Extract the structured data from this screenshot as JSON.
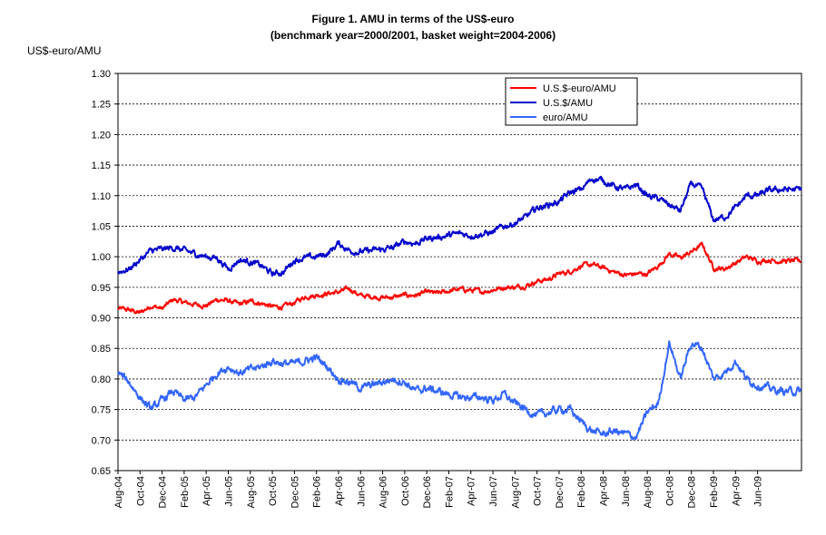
{
  "chart_data": {
    "type": "line",
    "title": "Figure 1. AMU in terms of the US$-euro",
    "subtitle": "(benchmark year=2000/2001, basket weight=2004-2006)",
    "ylabel": "US$-euro/AMU",
    "xlabel": "",
    "ylim": [
      0.65,
      1.3
    ],
    "ystep": 0.05,
    "yticks": [
      "0.65",
      "0.70",
      "0.75",
      "0.80",
      "0.85",
      "0.90",
      "0.95",
      "1.00",
      "1.05",
      "1.10",
      "1.15",
      "1.20",
      "1.25",
      "1.30"
    ],
    "x_range": [
      "2004-08-01",
      "2009-08-31"
    ],
    "categories": [
      "Aug-04",
      "Oct-04",
      "Dec-04",
      "Feb-05",
      "Apr-05",
      "Jun-05",
      "Aug-05",
      "Oct-05",
      "Dec-05",
      "Feb-06",
      "Apr-06",
      "Jun-06",
      "Aug-06",
      "Oct-06",
      "Dec-06",
      "Feb-07",
      "Apr-07",
      "Jun-07",
      "Aug-07",
      "Oct-07",
      "Dec-07",
      "Feb-08",
      "Apr-08",
      "Jun-08",
      "Aug-08",
      "Oct-08",
      "Dec-08",
      "Feb-09",
      "Apr-09",
      "Jun-09"
    ],
    "grid": true,
    "legend_position": "top-right",
    "series": [
      {
        "name": "U.S.$-euro/AMU",
        "color": "#ff0000",
        "x": [
          "2004-08",
          "2004-09",
          "2004-10",
          "2004-11",
          "2004-12",
          "2005-01",
          "2005-02",
          "2005-03",
          "2005-04",
          "2005-05",
          "2005-06",
          "2005-07",
          "2005-08",
          "2005-09",
          "2005-10",
          "2005-11",
          "2005-12",
          "2006-01",
          "2006-02",
          "2006-03",
          "2006-04",
          "2006-05",
          "2006-06",
          "2006-07",
          "2006-08",
          "2006-09",
          "2006-10",
          "2006-11",
          "2006-12",
          "2007-01",
          "2007-02",
          "2007-03",
          "2007-04",
          "2007-05",
          "2007-06",
          "2007-07",
          "2007-08",
          "2007-09",
          "2007-10",
          "2007-11",
          "2007-12",
          "2008-01",
          "2008-02",
          "2008-03",
          "2008-04",
          "2008-05",
          "2008-06",
          "2008-07",
          "2008-08",
          "2008-09",
          "2008-10",
          "2008-11",
          "2008-12",
          "2009-01",
          "2009-02",
          "2009-03",
          "2009-04",
          "2009-05",
          "2009-06",
          "2009-07",
          "2009-08"
        ],
        "values": [
          0.915,
          0.913,
          0.908,
          0.92,
          0.915,
          0.93,
          0.925,
          0.922,
          0.92,
          0.93,
          0.928,
          0.922,
          0.927,
          0.924,
          0.918,
          0.918,
          0.925,
          0.935,
          0.937,
          0.94,
          0.942,
          0.948,
          0.936,
          0.935,
          0.933,
          0.934,
          0.937,
          0.937,
          0.942,
          0.94,
          0.944,
          0.947,
          0.945,
          0.943,
          0.946,
          0.95,
          0.95,
          0.953,
          0.96,
          0.963,
          0.972,
          0.976,
          0.985,
          0.987,
          0.982,
          0.975,
          0.97,
          0.972,
          0.972,
          0.985,
          1.005,
          0.998,
          1.008,
          1.02,
          0.982,
          0.98,
          0.99,
          1.0,
          0.993,
          0.995,
          0.993
        ]
      },
      {
        "name": "U.S.$/AMU",
        "color": "#0000cc",
        "x": [
          "2004-08",
          "2004-09",
          "2004-10",
          "2004-11",
          "2004-12",
          "2005-01",
          "2005-02",
          "2005-03",
          "2005-04",
          "2005-05",
          "2005-06",
          "2005-07",
          "2005-08",
          "2005-09",
          "2005-10",
          "2005-11",
          "2005-12",
          "2006-01",
          "2006-02",
          "2006-03",
          "2006-04",
          "2006-05",
          "2006-06",
          "2006-07",
          "2006-08",
          "2006-09",
          "2006-10",
          "2006-11",
          "2006-12",
          "2007-01",
          "2007-02",
          "2007-03",
          "2007-04",
          "2007-05",
          "2007-06",
          "2007-07",
          "2007-08",
          "2007-09",
          "2007-10",
          "2007-11",
          "2007-12",
          "2008-01",
          "2008-02",
          "2008-03",
          "2008-04",
          "2008-05",
          "2008-06",
          "2008-07",
          "2008-08",
          "2008-09",
          "2008-10",
          "2008-11",
          "2008-12",
          "2009-01",
          "2009-02",
          "2009-03",
          "2009-04",
          "2009-05",
          "2009-06",
          "2009-07",
          "2009-08"
        ],
        "values": [
          0.975,
          0.98,
          0.995,
          1.01,
          1.012,
          1.015,
          1.01,
          1.005,
          1.0,
          0.998,
          0.98,
          0.995,
          0.992,
          0.985,
          0.972,
          0.975,
          0.995,
          0.998,
          1.0,
          1.005,
          1.022,
          1.01,
          1.008,
          1.01,
          1.012,
          1.015,
          1.025,
          1.022,
          1.03,
          1.032,
          1.035,
          1.038,
          1.035,
          1.037,
          1.04,
          1.05,
          1.055,
          1.065,
          1.08,
          1.085,
          1.09,
          1.105,
          1.11,
          1.128,
          1.125,
          1.115,
          1.11,
          1.118,
          1.1,
          1.095,
          1.085,
          1.075,
          1.12,
          1.11,
          1.06,
          1.065,
          1.08,
          1.1,
          1.1,
          1.108,
          1.11
        ]
      },
      {
        "name": "euro/AMU",
        "color": "#3366ff",
        "x": [
          "2004-08",
          "2004-09",
          "2004-10",
          "2004-11",
          "2004-12",
          "2005-01",
          "2005-02",
          "2005-03",
          "2005-04",
          "2005-05",
          "2005-06",
          "2005-07",
          "2005-08",
          "2005-09",
          "2005-10",
          "2005-11",
          "2005-12",
          "2006-01",
          "2006-02",
          "2006-03",
          "2006-04",
          "2006-05",
          "2006-06",
          "2006-07",
          "2006-08",
          "2006-09",
          "2006-10",
          "2006-11",
          "2006-12",
          "2007-01",
          "2007-02",
          "2007-03",
          "2007-04",
          "2007-05",
          "2007-06",
          "2007-07",
          "2007-08",
          "2007-09",
          "2007-10",
          "2007-11",
          "2007-12",
          "2008-01",
          "2008-02",
          "2008-03",
          "2008-04",
          "2008-05",
          "2008-06",
          "2008-07",
          "2008-08",
          "2008-09",
          "2008-10",
          "2008-11",
          "2008-12",
          "2009-01",
          "2009-02",
          "2009-03",
          "2009-04",
          "2009-05",
          "2009-06",
          "2009-07",
          "2009-08"
        ],
        "values": [
          0.81,
          0.795,
          0.77,
          0.75,
          0.765,
          0.78,
          0.765,
          0.77,
          0.79,
          0.81,
          0.82,
          0.81,
          0.815,
          0.82,
          0.83,
          0.825,
          0.825,
          0.83,
          0.835,
          0.82,
          0.8,
          0.795,
          0.785,
          0.79,
          0.795,
          0.8,
          0.795,
          0.78,
          0.785,
          0.78,
          0.775,
          0.77,
          0.77,
          0.77,
          0.765,
          0.775,
          0.76,
          0.75,
          0.74,
          0.745,
          0.75,
          0.75,
          0.73,
          0.715,
          0.71,
          0.715,
          0.71,
          0.705,
          0.745,
          0.76,
          0.86,
          0.8,
          0.86,
          0.85,
          0.8,
          0.81,
          0.83,
          0.8,
          0.79,
          0.785,
          0.78
        ]
      }
    ]
  }
}
